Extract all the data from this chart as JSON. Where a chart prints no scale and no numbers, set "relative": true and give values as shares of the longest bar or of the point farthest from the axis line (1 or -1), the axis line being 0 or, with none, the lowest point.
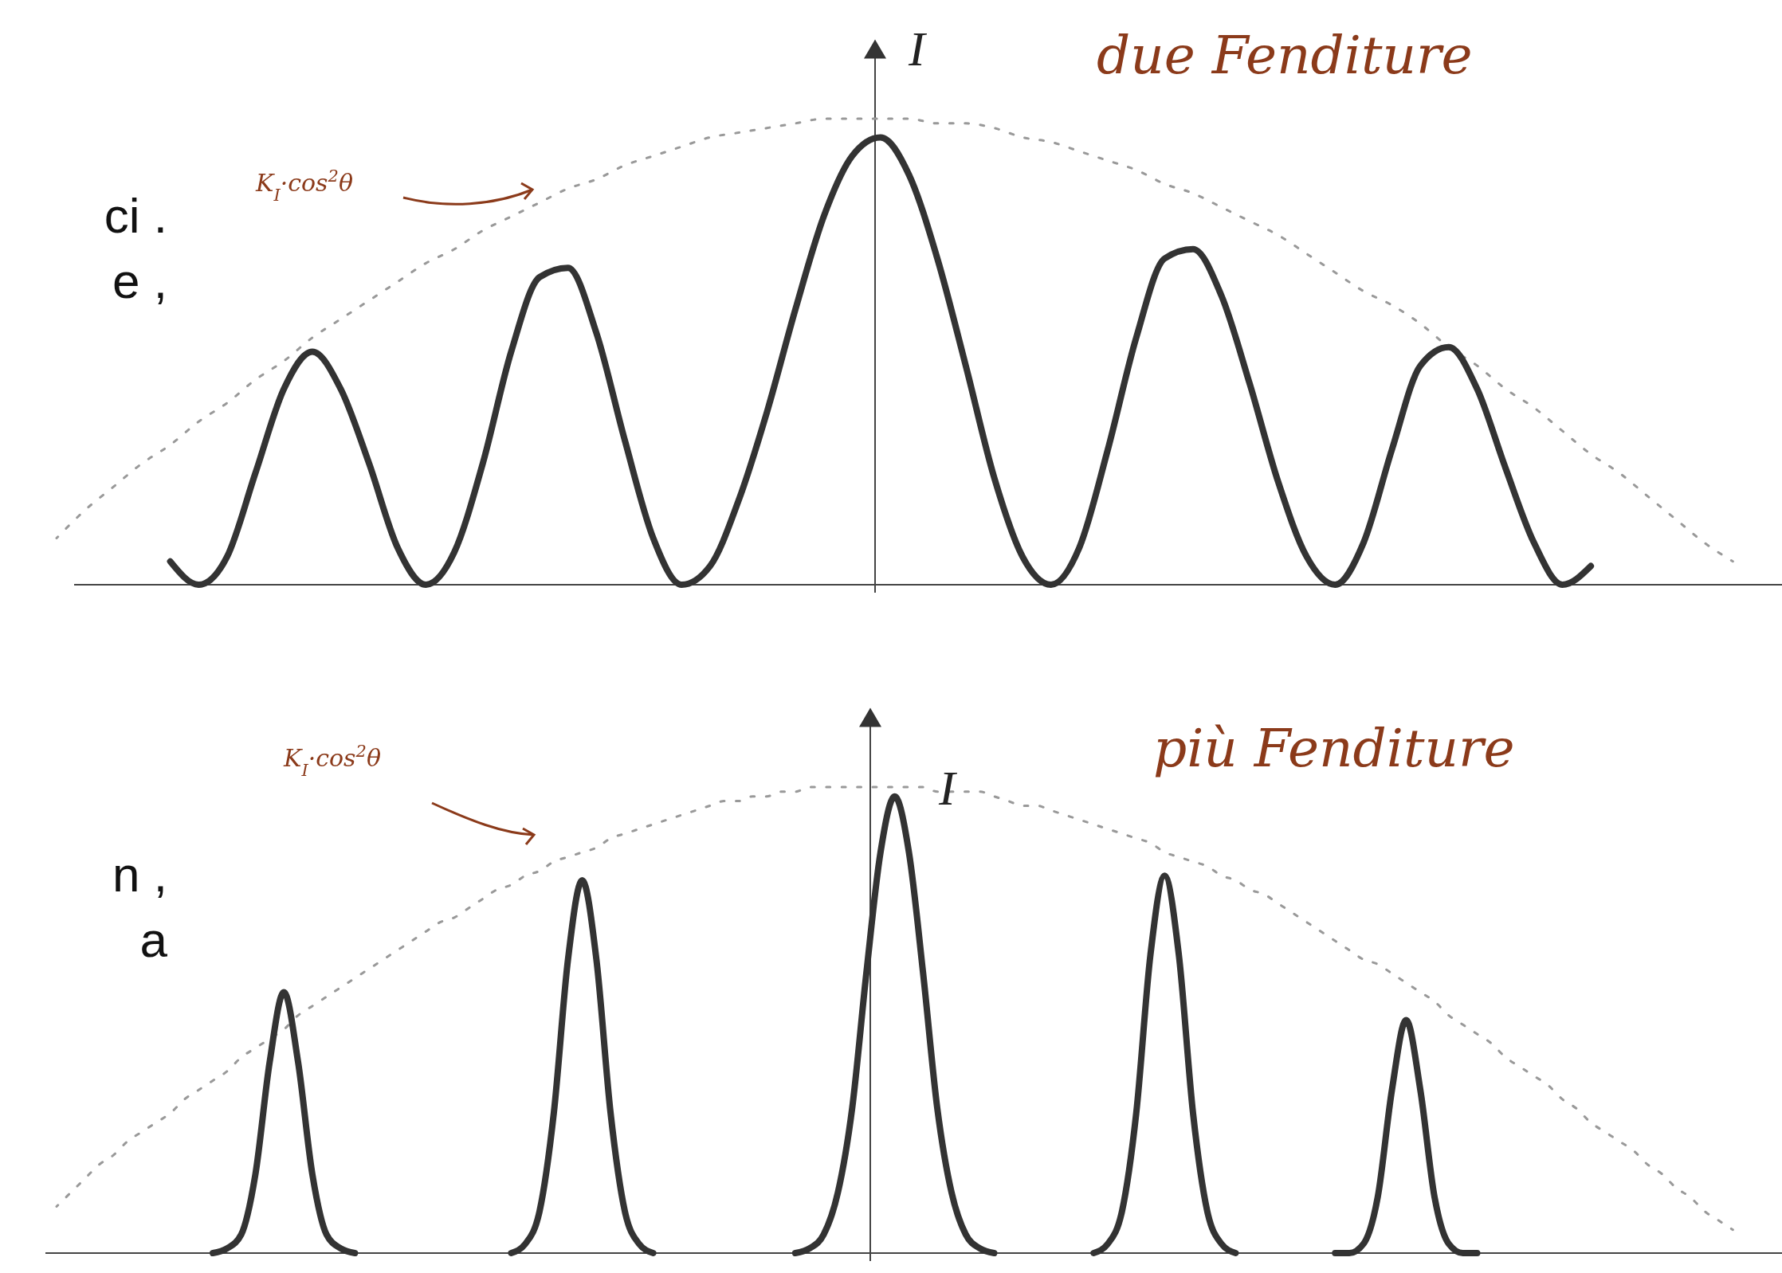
{
  "chart_data": [
    {
      "type": "line",
      "title": "due Fenditure",
      "ylabel": "I",
      "relative": true,
      "annotations": [
        "K$_{I}$·cos$^{2}$θ",
        "ci .",
        "e ,"
      ],
      "categories": [
        null,
        null,
        null,
        null,
        null,
        null,
        null,
        null,
        null,
        null,
        null,
        null,
        null,
        null,
        null,
        null,
        null,
        null,
        null,
        null,
        null,
        null,
        null,
        null,
        null,
        null,
        null,
        null,
        null,
        null,
        null,
        null,
        null,
        null,
        null,
        null,
        null,
        null,
        null,
        null,
        null,
        null,
        null,
        null,
        null,
        null,
        null,
        null,
        null,
        null,
        null,
        null,
        null,
        null,
        null,
        null,
        null,
        null,
        null,
        null,
        null
      ],
      "series": [
        {
          "color": "#999999",
          "line_style": "dotted",
          "values": [
            0.1,
            0.16,
            0.21,
            0.26,
            0.3,
            0.35,
            0.39,
            0.44,
            0.48,
            0.53,
            0.57,
            0.61,
            0.65,
            0.69,
            0.72,
            0.76,
            0.79,
            0.82,
            0.85,
            0.87,
            0.9,
            0.92,
            0.94,
            0.96,
            0.97,
            0.98,
            0.99,
            1.0,
            1.0,
            1.0,
            1.0,
            0.99,
            0.99,
            0.98,
            0.96,
            0.95,
            0.93,
            0.91,
            0.89,
            0.86,
            0.84,
            0.81,
            0.78,
            0.75,
            0.71,
            0.67,
            0.63,
            0.6,
            0.56,
            0.51,
            0.47,
            0.42,
            0.38,
            0.33,
            0.28,
            0.24,
            0.19,
            0.14,
            0.09,
            0.05,
            null
          ]
        },
        {
          "color": "#333333",
          "line_style": "solid",
          "values": [
            null,
            null,
            null,
            null,
            0.05,
            0,
            0.06,
            0.24,
            0.42,
            0.5,
            0.42,
            0.26,
            0.08,
            0,
            0.07,
            0.26,
            0.5,
            0.66,
            0.68,
            0.54,
            0.31,
            0.1,
            0,
            0.04,
            0.18,
            0.37,
            0.59,
            0.79,
            0.92,
            0.96,
            0.88,
            0.7,
            0.47,
            0.23,
            0.06,
            0,
            0.08,
            0.29,
            0.53,
            0.7,
            0.72,
            0.62,
            0.43,
            0.22,
            0.06,
            0,
            0.09,
            0.29,
            0.47,
            0.51,
            0.42,
            0.25,
            0.09,
            0,
            0.04,
            null,
            null,
            null,
            null,
            null,
            null
          ]
        }
      ]
    },
    {
      "type": "line",
      "title": "più Fenditure",
      "ylabel": "I",
      "relative": true,
      "annotations": [
        "K$_{I}$·cos$^{2}$θ",
        "n ,",
        "a"
      ],
      "categories": [
        null,
        null,
        null,
        null,
        null,
        null,
        null,
        null,
        null,
        null,
        null,
        null,
        null,
        null,
        null,
        null,
        null,
        null,
        null,
        null,
        null,
        null,
        null,
        null,
        null,
        null,
        null,
        null,
        null,
        null,
        null,
        null,
        null,
        null,
        null,
        null,
        null,
        null,
        null,
        null,
        null,
        null,
        null,
        null,
        null,
        null,
        null,
        null,
        null,
        null,
        null,
        null,
        null,
        null,
        null,
        null,
        null,
        null,
        null,
        null,
        null,
        null,
        null,
        null,
        null,
        null,
        null,
        null,
        null,
        null,
        null,
        null,
        null,
        null,
        null,
        null,
        null,
        null,
        null,
        null,
        null,
        null,
        null,
        null,
        null,
        null,
        null,
        null,
        null,
        null,
        null,
        null,
        null,
        null,
        null,
        null,
        null,
        null,
        null,
        null,
        null,
        null,
        null,
        null,
        null,
        null,
        null,
        null,
        null,
        null,
        null,
        null,
        null,
        null,
        null,
        null,
        null,
        null,
        null,
        null,
        null
      ],
      "series": [
        {
          "color": "#999999",
          "line_style": "dotted",
          "values": [
            0.1,
            0.13,
            0.16,
            0.19,
            0.21,
            0.24,
            0.26,
            0.28,
            0.3,
            0.33,
            0.35,
            0.37,
            0.39,
            0.42,
            0.44,
            0.46,
            0.48,
            0.51,
            0.53,
            0.55,
            0.57,
            0.59,
            0.61,
            0.63,
            0.65,
            0.67,
            0.69,
            0.71,
            0.72,
            0.74,
            0.76,
            0.78,
            0.79,
            0.81,
            0.82,
            0.84,
            0.85,
            0.86,
            0.87,
            0.89,
            0.9,
            0.91,
            0.92,
            0.93,
            0.94,
            0.95,
            0.96,
            0.97,
            0.97,
            0.98,
            0.98,
            0.99,
            0.99,
            1.0,
            1.0,
            1.0,
            1.0,
            1.0,
            1.0,
            1.0,
            1.0,
            1.0,
            0.99,
            0.99,
            0.99,
            0.99,
            0.98,
            0.97,
            0.96,
            0.96,
            0.95,
            0.94,
            0.93,
            0.92,
            0.91,
            0.9,
            0.89,
            0.88,
            0.86,
            0.85,
            0.84,
            0.83,
            0.81,
            0.8,
            0.78,
            0.77,
            0.75,
            0.73,
            0.71,
            0.69,
            0.67,
            0.65,
            0.63,
            0.62,
            0.6,
            0.58,
            0.56,
            0.54,
            0.51,
            0.49,
            0.47,
            0.45,
            0.42,
            0.4,
            0.38,
            0.36,
            0.33,
            0.31,
            0.28,
            0.26,
            0.24,
            0.22,
            0.19,
            0.17,
            0.14,
            0.12,
            0.09,
            0.07,
            0.05,
            null,
            null
          ]
        },
        {
          "color": "#333333",
          "line_style": "solid",
          "values": [
            null,
            null,
            null,
            null,
            null,
            null,
            null,
            null,
            null,
            null,
            null,
            0,
            0.01,
            0.04,
            0.17,
            0.41,
            0.56,
            0.41,
            0.17,
            0.04,
            0.01,
            0,
            null,
            null,
            null,
            null,
            null,
            null,
            null,
            null,
            null,
            null,
            0,
            0.02,
            0.09,
            0.3,
            0.63,
            0.8,
            0.63,
            0.3,
            0.09,
            0.02,
            0,
            null,
            null,
            null,
            null,
            null,
            null,
            null,
            null,
            null,
            0,
            0.01,
            0.04,
            0.13,
            0.31,
            0.6,
            0.86,
            0.98,
            0.86,
            0.6,
            0.31,
            0.13,
            0.04,
            0.01,
            0,
            null,
            null,
            null,
            null,
            null,
            null,
            0,
            0.02,
            0.09,
            0.3,
            0.64,
            0.81,
            0.64,
            0.3,
            0.09,
            0.02,
            0,
            null,
            null,
            null,
            null,
            null,
            null,
            0,
            0,
            0.02,
            0.12,
            0.35,
            0.5,
            0.35,
            0.12,
            0.02,
            0,
            0,
            null,
            null,
            null,
            null,
            null,
            null,
            null,
            null,
            null,
            null,
            null,
            null,
            null,
            null,
            null,
            null,
            null,
            null,
            null,
            null
          ]
        }
      ]
    }
  ]
}
